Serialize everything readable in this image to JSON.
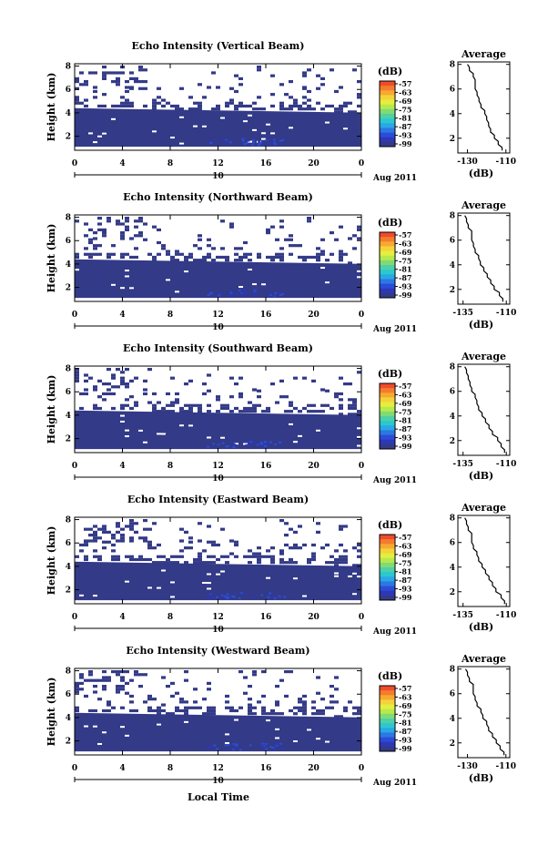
{
  "figure": {
    "xlabel": "Local Time"
  },
  "panel_texts": {
    "ylabel": "Height (km)",
    "day": "10",
    "month_year": "Aug 2011",
    "cbar_unit": "(dB)",
    "avg_title": "Average",
    "avg_xunit": "(dB)"
  },
  "colorbar": {
    "ticks": [
      "-57",
      "-63",
      "-69",
      "-75",
      "-81",
      "-87",
      "-93",
      "-99"
    ],
    "colors": [
      "#ef4b2c",
      "#f47c2d",
      "#f7a92f",
      "#f4d33a",
      "#e5ee3f",
      "#b7e94c",
      "#7fdb76",
      "#4fd0a6",
      "#2cc8cf",
      "#2aa7e6",
      "#2b78e2",
      "#2b4cd8",
      "#2d38b5",
      "#333a87"
    ]
  },
  "chart_data": [
    {
      "type": "heatmap",
      "title": "Echo Intensity (Vertical Beam)",
      "x_ticks": [
        "0",
        "4",
        "8",
        "12",
        "16",
        "20",
        "0"
      ],
      "y_ticks": [
        "2",
        "4",
        "6",
        "8"
      ],
      "xlim": [
        0,
        24
      ],
      "ylim": [
        0.8,
        8.2
      ],
      "profile": {
        "xticks": [
          "-130",
          "-110"
        ],
        "xlim": [
          -135,
          -108
        ],
        "heights": [
          8,
          7.5,
          7,
          6.5,
          6,
          5.5,
          5,
          4.5,
          4,
          3.5,
          3,
          2.5,
          2,
          1.5,
          1
        ],
        "values": [
          -130,
          -129,
          -127,
          -126,
          -126,
          -125,
          -124,
          -123,
          -121,
          -120,
          -119,
          -118,
          -116,
          -114,
          -112
        ]
      }
    },
    {
      "type": "heatmap",
      "title": "Echo Intensity (Northward Beam)",
      "x_ticks": [
        "0",
        "4",
        "8",
        "12",
        "16",
        "20",
        "0"
      ],
      "y_ticks": [
        "2",
        "4",
        "6",
        "8"
      ],
      "xlim": [
        0,
        24
      ],
      "ylim": [
        0.8,
        8.2
      ],
      "profile": {
        "xticks": [
          "-135",
          "-110"
        ],
        "xlim": [
          -138,
          -108
        ],
        "heights": [
          8,
          7.5,
          7,
          6.5,
          6,
          5.5,
          5,
          4.5,
          4,
          3.5,
          3,
          2.5,
          2,
          1.5,
          1
        ],
        "values": [
          -134,
          -133,
          -132,
          -130,
          -130,
          -129,
          -128,
          -126,
          -125,
          -123,
          -121,
          -119,
          -117,
          -114,
          -112
        ]
      }
    },
    {
      "type": "heatmap",
      "title": "Echo Intensity (Southward Beam)",
      "x_ticks": [
        "0",
        "4",
        "8",
        "12",
        "16",
        "20",
        "0"
      ],
      "y_ticks": [
        "2",
        "4",
        "6",
        "8"
      ],
      "xlim": [
        0,
        24
      ],
      "ylim": [
        0.8,
        8.2
      ],
      "profile": {
        "xticks": [
          "-135",
          "-110"
        ],
        "xlim": [
          -138,
          -108
        ],
        "heights": [
          8,
          7.5,
          7,
          6.5,
          6,
          5.5,
          5,
          4.5,
          4,
          3.5,
          3,
          2.5,
          2,
          1.5,
          1
        ],
        "values": [
          -134,
          -133,
          -132,
          -131,
          -130,
          -128,
          -127,
          -126,
          -124,
          -122,
          -120,
          -118,
          -115,
          -113,
          -111
        ]
      }
    },
    {
      "type": "heatmap",
      "title": "Echo Intensity (Eastward Beam)",
      "x_ticks": [
        "0",
        "4",
        "8",
        "12",
        "16",
        "20",
        "0"
      ],
      "y_ticks": [
        "2",
        "4",
        "6",
        "8"
      ],
      "xlim": [
        0,
        24
      ],
      "ylim": [
        0.8,
        8.2
      ],
      "profile": {
        "xticks": [
          "-135",
          "-110"
        ],
        "xlim": [
          -138,
          -108
        ],
        "heights": [
          8,
          7.5,
          7,
          6.5,
          6,
          5.5,
          5,
          4.5,
          4,
          3.5,
          3,
          2.5,
          2,
          1.5,
          1
        ],
        "values": [
          -134,
          -133,
          -132,
          -130,
          -130,
          -129,
          -127,
          -126,
          -124,
          -122,
          -120,
          -118,
          -116,
          -113,
          -111
        ]
      }
    },
    {
      "type": "heatmap",
      "title": "Echo Intensity (Westward Beam)",
      "x_ticks": [
        "0",
        "4",
        "8",
        "12",
        "16",
        "20",
        "0"
      ],
      "y_ticks": [
        "2",
        "4",
        "6",
        "8"
      ],
      "xlim": [
        0,
        24
      ],
      "ylim": [
        0.8,
        8.2
      ],
      "profile": {
        "xticks": [
          "-130",
          "-110"
        ],
        "xlim": [
          -135,
          -108
        ],
        "heights": [
          8,
          7.5,
          7,
          6.5,
          6,
          5.5,
          5,
          4.5,
          4,
          3.5,
          3,
          2.5,
          2,
          1.5,
          1
        ],
        "values": [
          -131,
          -130,
          -129,
          -127,
          -127,
          -126,
          -125,
          -123,
          -122,
          -120,
          -119,
          -117,
          -115,
          -113,
          -111
        ]
      }
    }
  ]
}
